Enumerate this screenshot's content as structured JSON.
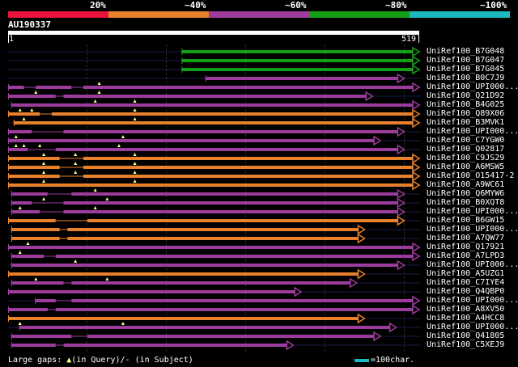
{
  "legend": {
    "segments": [
      {
        "color": "#e8143c",
        "label": "20%"
      },
      {
        "color": "#e8802c",
        "label": "~40%"
      },
      {
        "color": "#9c3c9c",
        "label": "~60%"
      },
      {
        "color": "#14a014",
        "label": "~80%"
      },
      {
        "color": "#1cb8c0",
        "label": "~100%"
      }
    ]
  },
  "query": {
    "name": "AU190337",
    "start": "1",
    "end": "519",
    "length": 519
  },
  "hits": [
    {
      "label": "UniRef100_B7G048",
      "color": "#14a014",
      "start": 220,
      "end": 519,
      "ticks": [],
      "gaps": []
    },
    {
      "label": "UniRef100_B7G047",
      "color": "#14a014",
      "start": 220,
      "end": 519,
      "ticks": [],
      "gaps": []
    },
    {
      "label": "UniRef100_B7G045",
      "color": "#14a014",
      "start": 220,
      "end": 519,
      "ticks": [],
      "gaps": []
    },
    {
      "label": "UniRef100_B0C7J9",
      "color": "#9c3c9c",
      "start": 250,
      "end": 500,
      "ticks": [],
      "gaps": []
    },
    {
      "label": "UniRef100_UPI000...",
      "color": "#9c3c9c",
      "start": 1,
      "end": 519,
      "ticks": [
        115
      ],
      "gaps": [
        [
          20,
          35
        ],
        [
          80,
          95
        ]
      ]
    },
    {
      "label": "UniRef100_Q21D92",
      "color": "#9c3c9c",
      "start": 1,
      "end": 460,
      "ticks": [
        35,
        115
      ],
      "gaps": [
        [
          60,
          70
        ]
      ]
    },
    {
      "label": "UniRef100_B4G025",
      "color": "#9c3c9c",
      "start": 5,
      "end": 519,
      "ticks": [
        110,
        160
      ],
      "gaps": []
    },
    {
      "label": "UniRef100_Q89X06",
      "color": "#e8802c",
      "start": 1,
      "end": 519,
      "ticks": [
        15,
        30,
        160
      ],
      "gaps": [
        [
          40,
          55
        ]
      ]
    },
    {
      "label": "UniRef100_B3MVK1",
      "color": "#e8802c",
      "start": 8,
      "end": 519,
      "ticks": [
        20,
        160
      ],
      "gaps": []
    },
    {
      "label": "UniRef100_UPI000...",
      "color": "#9c3c9c",
      "start": 1,
      "end": 500,
      "ticks": [],
      "gaps": [
        [
          30,
          70
        ]
      ]
    },
    {
      "label": "UniRef100_C7YGW0",
      "color": "#9c3c9c",
      "start": 1,
      "end": 470,
      "ticks": [
        10,
        145
      ],
      "gaps": []
    },
    {
      "label": "UniRef100_Q02817",
      "color": "#9c3c9c",
      "start": 1,
      "end": 500,
      "ticks": [
        10,
        20,
        40,
        140
      ],
      "gaps": [
        [
          25,
          60
        ]
      ]
    },
    {
      "label": "UniRef100_C9JS29",
      "color": "#e8802c",
      "start": 1,
      "end": 519,
      "ticks": [
        45,
        85,
        160
      ],
      "gaps": [
        [
          65,
          95
        ]
      ]
    },
    {
      "label": "UniRef100_A6MSW5",
      "color": "#e8802c",
      "start": 1,
      "end": 519,
      "ticks": [
        45,
        85,
        160
      ],
      "gaps": [
        [
          65,
          95
        ]
      ]
    },
    {
      "label": "UniRef100_O15417-2",
      "color": "#e8802c",
      "start": 1,
      "end": 519,
      "ticks": [
        45,
        85,
        160
      ],
      "gaps": [
        [
          65,
          95
        ]
      ]
    },
    {
      "label": "UniRef100_A9WC61",
      "color": "#e8802c",
      "start": 1,
      "end": 519,
      "ticks": [
        45,
        160
      ],
      "gaps": []
    },
    {
      "label": "UniRef100_Q6MYW6",
      "color": "#9c3c9c",
      "start": 5,
      "end": 500,
      "ticks": [
        110
      ],
      "gaps": [
        [
          50,
          80
        ]
      ]
    },
    {
      "label": "UniRef100_B0XQT8",
      "color": "#9c3c9c",
      "start": 5,
      "end": 500,
      "ticks": [
        45,
        125
      ],
      "gaps": [
        [
          30,
          70
        ]
      ]
    },
    {
      "label": "UniRef100_UPI000...",
      "color": "#9c3c9c",
      "start": 5,
      "end": 500,
      "ticks": [
        15,
        110
      ],
      "gaps": [
        [
          40,
          70
        ]
      ]
    },
    {
      "label": "UniRef100_B6GW15",
      "color": "#e8802c",
      "start": 1,
      "end": 500,
      "ticks": [],
      "gaps": [
        [
          60,
          100
        ]
      ]
    },
    {
      "label": "UniRef100_UPI000...",
      "color": "#e8802c",
      "start": 5,
      "end": 450,
      "ticks": [],
      "gaps": [
        [
          65,
          75
        ]
      ]
    },
    {
      "label": "UniRef100_A7QW77",
      "color": "#e8802c",
      "start": 5,
      "end": 450,
      "ticks": [],
      "gaps": [
        [
          65,
          75
        ]
      ]
    },
    {
      "label": "UniRef100_Q17921",
      "color": "#9c3c9c",
      "start": 1,
      "end": 519,
      "ticks": [
        25
      ],
      "gaps": []
    },
    {
      "label": "UniRef100_A7LPD3",
      "color": "#9c3c9c",
      "start": 5,
      "end": 519,
      "ticks": [
        15
      ],
      "gaps": [
        [
          45,
          60
        ]
      ]
    },
    {
      "label": "UniRef100_UPI000...",
      "color": "#9c3c9c",
      "start": 5,
      "end": 500,
      "ticks": [
        85
      ],
      "gaps": []
    },
    {
      "label": "UniRef100_A5UZG1",
      "color": "#e8802c",
      "start": 1,
      "end": 450,
      "ticks": [],
      "gaps": []
    },
    {
      "label": "UniRef100_C7IYE4",
      "color": "#9c3c9c",
      "start": 5,
      "end": 440,
      "ticks": [
        35,
        125
      ],
      "gaps": [
        [
          70,
          80
        ]
      ]
    },
    {
      "label": "UniRef100_Q4QBP0",
      "color": "#9c3c9c",
      "start": 1,
      "end": 370,
      "ticks": [],
      "gaps": []
    },
    {
      "label": "UniRef100_UPI000...",
      "color": "#9c3c9c",
      "start": 35,
      "end": 519,
      "ticks": [],
      "gaps": [
        [
          60,
          80
        ]
      ]
    },
    {
      "label": "UniRef100_A8XV50",
      "color": "#9c3c9c",
      "start": 1,
      "end": 519,
      "ticks": [],
      "gaps": [
        [
          50,
          60
        ]
      ]
    },
    {
      "label": "UniRef100_A4HCC8",
      "color": "#e8802c",
      "start": 1,
      "end": 450,
      "ticks": [],
      "gaps": []
    },
    {
      "label": "UniRef100_UPI000...",
      "color": "#9c3c9c",
      "start": 15,
      "end": 490,
      "ticks": [
        15,
        145
      ],
      "gaps": []
    },
    {
      "label": "UniRef100_Q41805",
      "color": "#9c3c9c",
      "start": 5,
      "end": 470,
      "ticks": [],
      "gaps": [
        [
          80,
          100
        ]
      ]
    },
    {
      "label": "UniRef100_C5XEJ9",
      "color": "#9c3c9c",
      "start": 5,
      "end": 360,
      "ticks": [],
      "gaps": [
        [
          60,
          70
        ]
      ]
    }
  ],
  "footer": {
    "large_gaps_prefix": "Large gaps:",
    "query_symbol": "▲",
    "query_text": "(in Query)/",
    "subject_text": "- (in Subject)",
    "scale_color": "#1cb8c0",
    "scale_label": "=100char."
  }
}
